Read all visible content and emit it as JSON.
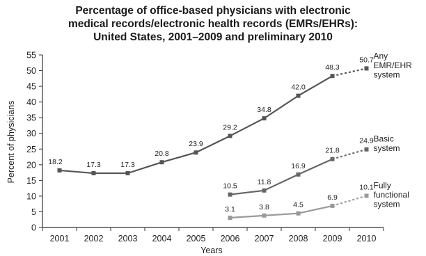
{
  "chart_data": {
    "type": "line",
    "title": [
      "Percentage of office-based physicians with electronic",
      "medical records/electronic health records (EMRs/EHRs):",
      "United States, 2001–2009 and preliminary 2010"
    ],
    "xlabel": "Years",
    "ylabel": "Percent of physicians",
    "x": [
      "2001",
      "2002",
      "2003",
      "2004",
      "2005",
      "2006",
      "2007",
      "2008",
      "2009",
      "2010"
    ],
    "ylim": [
      0,
      55
    ],
    "yticks": [
      0,
      5,
      10,
      15,
      20,
      25,
      30,
      35,
      40,
      45,
      50,
      55
    ],
    "grid": false,
    "projected_from": "2009",
    "series": [
      {
        "name": [
          "Any",
          "EMR/EHR",
          "system"
        ],
        "color": "#555555",
        "points": [
          {
            "x": "2001",
            "y": 18.2,
            "label": "18.2"
          },
          {
            "x": "2002",
            "y": 17.3,
            "label": "17.3"
          },
          {
            "x": "2003",
            "y": 17.3,
            "label": "17.3"
          },
          {
            "x": "2004",
            "y": 20.8,
            "label": "20.8"
          },
          {
            "x": "2005",
            "y": 23.9,
            "label": "23.9"
          },
          {
            "x": "2006",
            "y": 29.2,
            "label": "29.2"
          },
          {
            "x": "2007",
            "y": 34.8,
            "label": "34.8"
          },
          {
            "x": "2008",
            "y": 42.0,
            "label": "42.0"
          },
          {
            "x": "2009",
            "y": 48.3,
            "label": "48.3"
          },
          {
            "x": "2010",
            "y": 50.7,
            "label": "50.7"
          }
        ]
      },
      {
        "name": [
          "Basic",
          "system"
        ],
        "color": "#666666",
        "points": [
          {
            "x": "2006",
            "y": 10.5,
            "label": "10.5"
          },
          {
            "x": "2007",
            "y": 11.8,
            "label": "11.8"
          },
          {
            "x": "2008",
            "y": 16.9,
            "label": "16.9"
          },
          {
            "x": "2009",
            "y": 21.8,
            "label": "21.8"
          },
          {
            "x": "2010",
            "y": 24.9,
            "label": "24.9"
          }
        ]
      },
      {
        "name": [
          "Fully",
          "functional",
          "system"
        ],
        "color": "#999999",
        "points": [
          {
            "x": "2006",
            "y": 3.1,
            "label": "3.1"
          },
          {
            "x": "2007",
            "y": 3.8,
            "label": "3.8"
          },
          {
            "x": "2008",
            "y": 4.5,
            "label": "4.5"
          },
          {
            "x": "2009",
            "y": 6.9,
            "label": "6.9"
          },
          {
            "x": "2010",
            "y": 10.1,
            "label": "10.1"
          }
        ]
      }
    ]
  }
}
